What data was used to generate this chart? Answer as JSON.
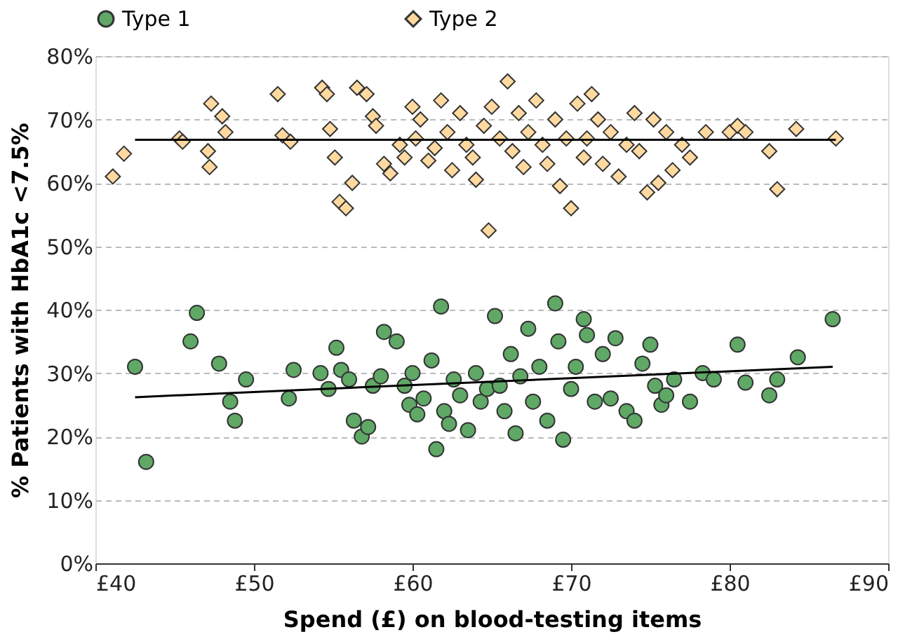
{
  "chart_data": {
    "type": "scatter",
    "xlabel": "Spend (£) on blood-testing items",
    "ylabel": "% Patients with HbA1c <7.5%",
    "xlim": [
      40,
      90
    ],
    "xticks": [
      {
        "value": 40,
        "label": "£40"
      },
      {
        "value": 50,
        "label": "£50"
      },
      {
        "value": 60,
        "label": "£60"
      },
      {
        "value": 70,
        "label": "£70"
      },
      {
        "value": 80,
        "label": "£80"
      },
      {
        "value": 90,
        "label": "£90"
      }
    ],
    "ylim": [
      0,
      80
    ],
    "yticks": [
      {
        "value": 0,
        "label": "0%"
      },
      {
        "value": 10,
        "label": "10%"
      },
      {
        "value": 20,
        "label": "20%"
      },
      {
        "value": 30,
        "label": "30%"
      },
      {
        "value": 40,
        "label": "40%"
      },
      {
        "value": 50,
        "label": "50%"
      },
      {
        "value": 60,
        "label": "60%"
      },
      {
        "value": 70,
        "label": "70%"
      },
      {
        "value": 80,
        "label": "80%"
      }
    ],
    "grid": "y",
    "legend": "top",
    "series": [
      {
        "name": "Type 1",
        "marker": "circle",
        "color": "#5fa866",
        "x": [
          42.5,
          43.2,
          46,
          46.4,
          47.8,
          48.5,
          48.8,
          49.5,
          52.2,
          52.5,
          54.2,
          54.7,
          55.2,
          55.5,
          56,
          56.3,
          56.8,
          57.2,
          57.5,
          58,
          58.2,
          59,
          59.5,
          59.8,
          60,
          60.3,
          60.7,
          61.2,
          61.5,
          61.8,
          62,
          62.3,
          62.6,
          63,
          63.5,
          64,
          64.3,
          64.7,
          65.2,
          65.5,
          65.8,
          66.2,
          66.5,
          66.8,
          67.3,
          67.6,
          68,
          68.5,
          69,
          69.2,
          69.5,
          70,
          70.3,
          70.8,
          71,
          71.5,
          72,
          72.5,
          72.8,
          73.5,
          74,
          74.5,
          75,
          75.3,
          75.7,
          76,
          76.5,
          77.5,
          78.3,
          79,
          80.5,
          81,
          82.5,
          83,
          84.3,
          86.5
        ],
        "values": [
          31,
          16,
          35,
          39.5,
          31.5,
          25.5,
          22.5,
          29,
          26,
          30.5,
          30,
          27.5,
          34,
          30.5,
          29,
          22.5,
          20,
          21.5,
          28,
          29.5,
          36.5,
          35,
          28,
          25,
          30,
          23.5,
          26,
          32,
          18,
          40.5,
          24,
          22,
          29,
          26.5,
          21,
          30,
          25.5,
          27.5,
          39,
          28,
          24,
          33,
          20.5,
          29.5,
          37,
          25.5,
          31,
          22.5,
          41,
          35,
          19.5,
          27.5,
          31,
          38.5,
          36,
          25.5,
          33,
          26,
          35.5,
          24,
          22.5,
          31.5,
          34.5,
          28,
          25,
          26.5,
          29,
          25.5,
          30,
          29,
          34.5,
          28.5,
          26.5,
          29,
          32.5,
          38.5
        ]
      },
      {
        "name": "Type 2",
        "marker": "diamond",
        "color": "#ffd9a0",
        "x": [
          41.1,
          41.8,
          45.3,
          45.5,
          47.1,
          47.2,
          47.3,
          48,
          48.2,
          51.5,
          51.8,
          52.3,
          54.3,
          54.6,
          54.8,
          55.1,
          55.4,
          55.8,
          56.2,
          56.5,
          57.1,
          57.5,
          57.7,
          58.2,
          58.6,
          59.2,
          59.5,
          60,
          60.2,
          60.5,
          61,
          61.4,
          61.8,
          62.2,
          62.5,
          63,
          63.4,
          63.8,
          64,
          64.5,
          64.8,
          65,
          65.5,
          66,
          66.3,
          66.7,
          67,
          67.3,
          67.8,
          68.2,
          68.5,
          69,
          69.3,
          69.7,
          70,
          70.4,
          70.8,
          71,
          71.3,
          71.7,
          72,
          72.5,
          73,
          73.5,
          74,
          74.3,
          74.8,
          75.2,
          75.5,
          76,
          76.4,
          77,
          77.5,
          78.5,
          80,
          80.5,
          81,
          82.5,
          83,
          84.2,
          86.7
        ],
        "values": [
          61,
          64.6,
          67,
          66.5,
          65,
          62.5,
          72.5,
          70.5,
          68,
          74,
          67.5,
          66.5,
          75,
          74,
          68.5,
          64,
          57,
          56,
          60,
          75,
          74,
          70.5,
          69,
          63,
          61.5,
          66,
          64,
          72,
          67,
          70,
          63.5,
          65.5,
          73,
          68,
          62,
          71,
          66,
          64,
          60.5,
          69,
          52.5,
          72,
          67,
          76,
          65,
          71,
          62.5,
          68,
          73,
          66,
          63,
          70,
          59.5,
          67,
          56,
          72.5,
          64,
          67,
          74,
          70,
          63,
          68,
          61,
          66,
          71,
          65,
          58.5,
          70,
          60,
          68,
          62,
          66,
          64,
          68,
          68,
          69,
          68,
          65,
          59,
          68.5,
          67
        ]
      },
      {
        "type": "line",
        "color": "#000000",
        "x": [
          42.5,
          86.5
        ],
        "values": [
          26.2,
          31
        ]
      },
      {
        "type": "line",
        "color": "#000000",
        "x": [
          42.5,
          86.7
        ],
        "values": [
          66.8,
          66.8
        ]
      }
    ]
  }
}
